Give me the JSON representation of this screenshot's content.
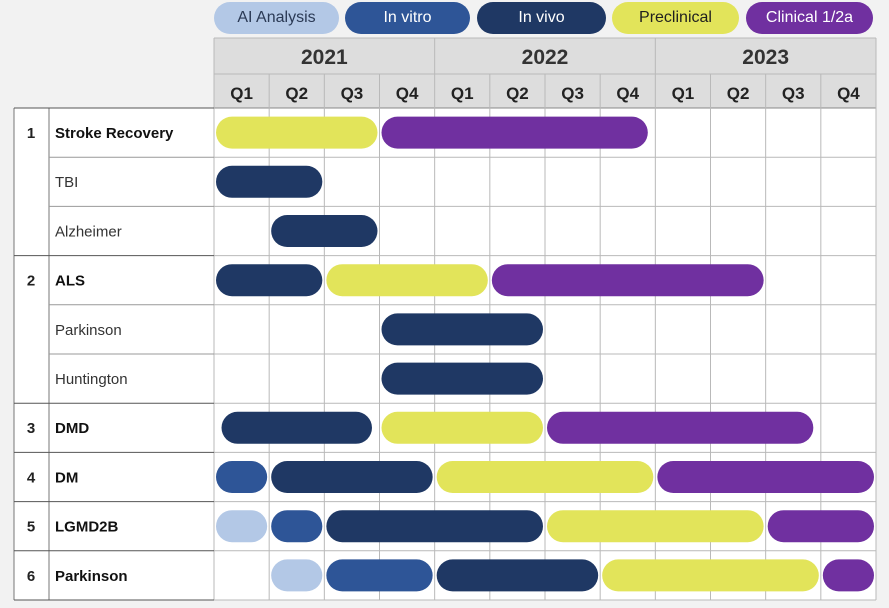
{
  "legend": [
    {
      "key": "ai",
      "label": "AI Analysis",
      "color": "#b3c8e6",
      "text_color": "#2b3a55"
    },
    {
      "key": "vitro",
      "label": "In vitro",
      "color": "#2e5597",
      "text_color": "#ffffff"
    },
    {
      "key": "vivo",
      "label": "In vivo",
      "color": "#1f3864",
      "text_color": "#ffffff"
    },
    {
      "key": "pre",
      "label": "Preclinical",
      "color": "#e2e45a",
      "text_color": "#1f1f1f"
    },
    {
      "key": "clin",
      "label": "Clinical 1/2a",
      "color": "#7030a0",
      "text_color": "#ffffff"
    }
  ],
  "chart_data": {
    "type": "gantt",
    "years": [
      "2021",
      "2022",
      "2023"
    ],
    "quarters": [
      "Q1",
      "Q2",
      "Q3",
      "Q4",
      "Q1",
      "Q2",
      "Q3",
      "Q4",
      "Q1",
      "Q2",
      "Q3",
      "Q4"
    ],
    "groups": [
      {
        "number": "1",
        "rows": [
          {
            "name": "Stroke Recovery",
            "bold": true,
            "bars": [
              {
                "phase": "pre",
                "start": 0,
                "end": 3
              },
              {
                "phase": "clin",
                "start": 3,
                "end": 7.9
              }
            ]
          },
          {
            "name": "TBI",
            "bold": false,
            "bars": [
              {
                "phase": "vivo",
                "start": 0,
                "end": 2
              }
            ]
          },
          {
            "name": "Alzheimer",
            "bold": false,
            "bars": [
              {
                "phase": "vivo",
                "start": 1,
                "end": 3
              }
            ]
          }
        ]
      },
      {
        "number": "2",
        "rows": [
          {
            "name": "ALS",
            "bold": true,
            "bars": [
              {
                "phase": "vivo",
                "start": 0,
                "end": 2
              },
              {
                "phase": "pre",
                "start": 2,
                "end": 5
              },
              {
                "phase": "clin",
                "start": 5,
                "end": 10
              }
            ]
          },
          {
            "name": "Parkinson",
            "bold": false,
            "bars": [
              {
                "phase": "vivo",
                "start": 3,
                "end": 6
              }
            ]
          },
          {
            "name": "Huntington",
            "bold": false,
            "bars": [
              {
                "phase": "vivo",
                "start": 3,
                "end": 6
              }
            ]
          }
        ]
      },
      {
        "number": "3",
        "rows": [
          {
            "name": "DMD",
            "bold": true,
            "bars": [
              {
                "phase": "vivo",
                "start": 0.1,
                "end": 2.9
              },
              {
                "phase": "pre",
                "start": 3,
                "end": 6
              },
              {
                "phase": "clin",
                "start": 6,
                "end": 10.9
              }
            ]
          }
        ]
      },
      {
        "number": "4",
        "rows": [
          {
            "name": "DM",
            "bold": true,
            "bars": [
              {
                "phase": "vitro",
                "start": 0,
                "end": 1
              },
              {
                "phase": "vivo",
                "start": 1,
                "end": 4
              },
              {
                "phase": "pre",
                "start": 4,
                "end": 8
              },
              {
                "phase": "clin",
                "start": 8,
                "end": 12
              }
            ]
          }
        ]
      },
      {
        "number": "5",
        "rows": [
          {
            "name": "LGMD2B",
            "bold": true,
            "bars": [
              {
                "phase": "ai",
                "start": 0,
                "end": 1
              },
              {
                "phase": "vitro",
                "start": 1,
                "end": 2
              },
              {
                "phase": "vivo",
                "start": 2,
                "end": 6
              },
              {
                "phase": "pre",
                "start": 6,
                "end": 10
              },
              {
                "phase": "clin",
                "start": 10,
                "end": 12
              }
            ]
          }
        ]
      },
      {
        "number": "6",
        "rows": [
          {
            "name": "Parkinson",
            "bold": true,
            "bars": [
              {
                "phase": "ai",
                "start": 1,
                "end": 2
              },
              {
                "phase": "vitro",
                "start": 2,
                "end": 4
              },
              {
                "phase": "vivo",
                "start": 4,
                "end": 7
              },
              {
                "phase": "pre",
                "start": 7,
                "end": 11
              },
              {
                "phase": "clin",
                "start": 11,
                "end": 12
              }
            ]
          }
        ]
      }
    ]
  }
}
